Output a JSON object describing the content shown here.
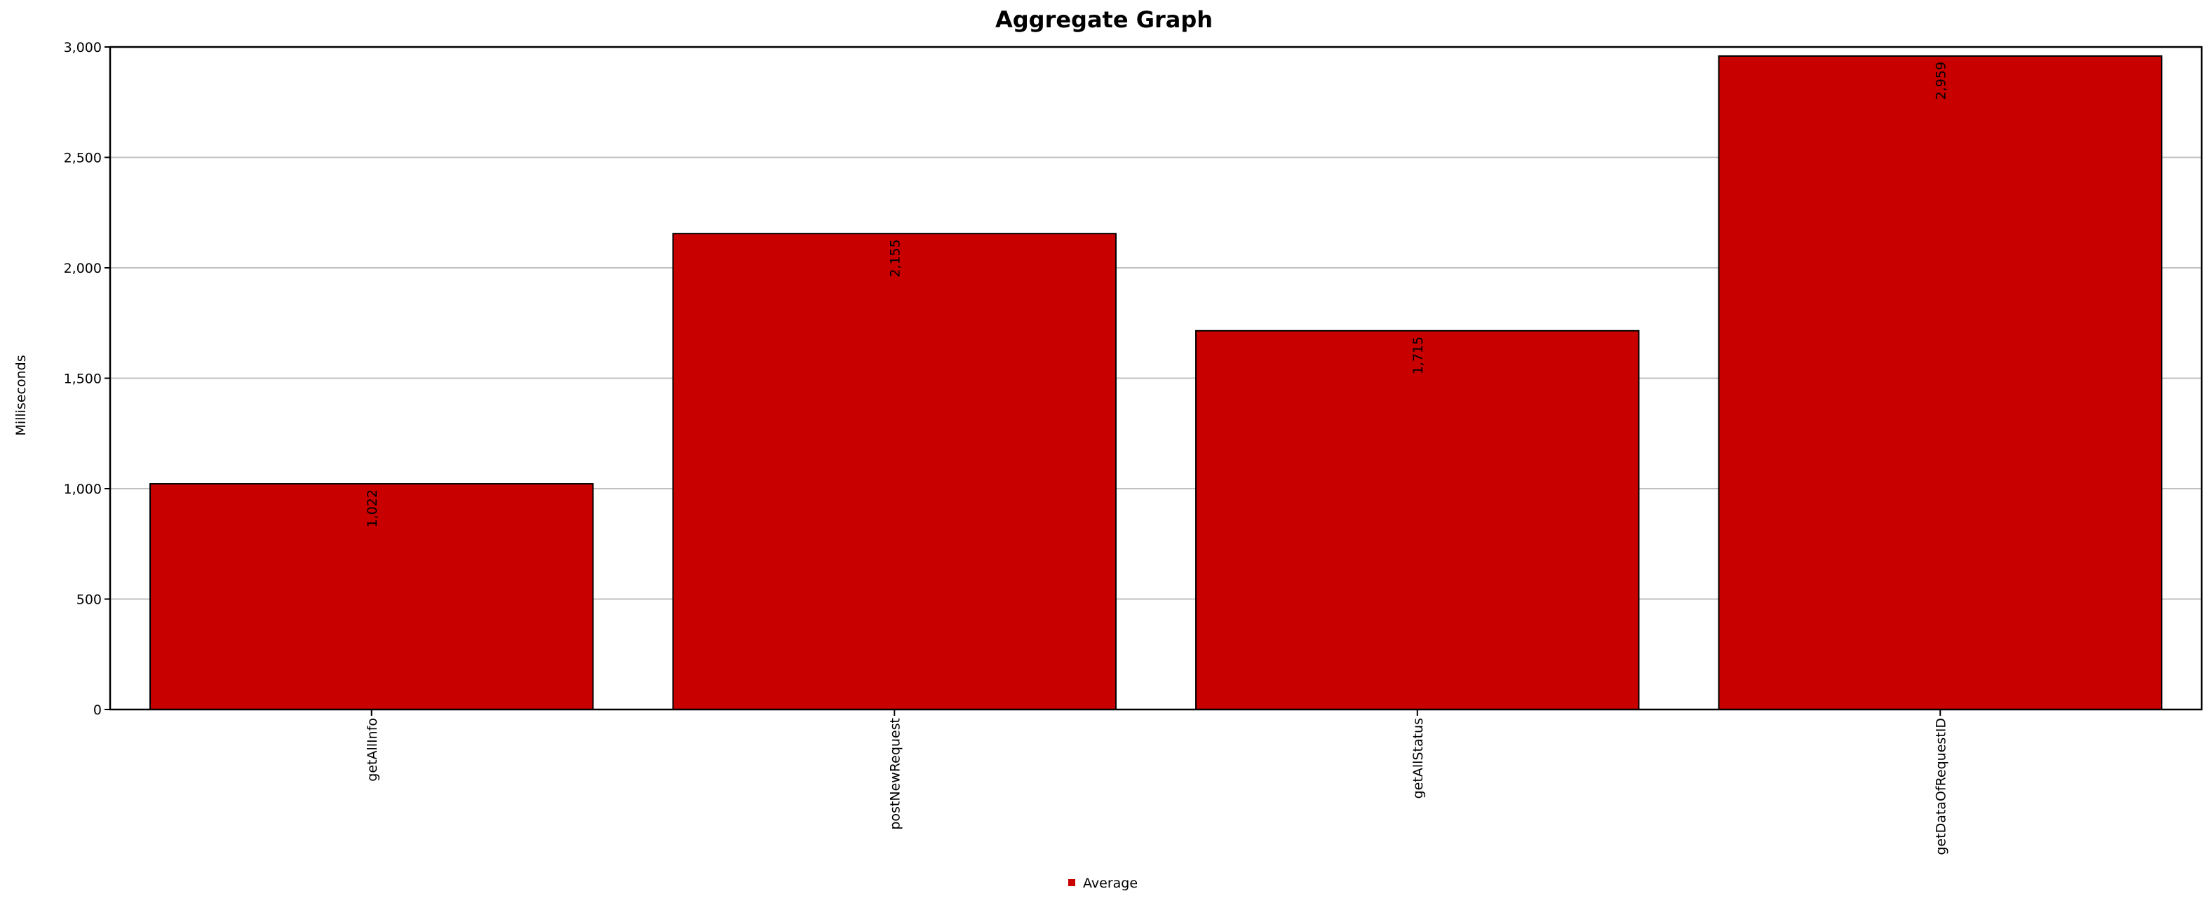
{
  "chart_data": {
    "type": "bar",
    "title": "Aggregate Graph",
    "xlabel": "",
    "ylabel": "Milliseconds",
    "categories": [
      "getAllInfo",
      "postNewRequest",
      "getAllStatus",
      "getDataOfRequestID"
    ],
    "series": [
      {
        "name": "Average",
        "values": [
          1022,
          2155,
          1715,
          2959
        ],
        "labels": [
          "1,022",
          "2,155",
          "1,715",
          "2,959"
        ],
        "color": "#c80000"
      }
    ],
    "ylim": [
      0,
      3000
    ],
    "yticks": [
      0,
      500,
      1000,
      1500,
      2000,
      2500,
      3000
    ],
    "ytick_labels": [
      "0",
      "500",
      "1,000",
      "1,500",
      "2,000",
      "2,500",
      "3,000"
    ],
    "grid": true,
    "legend_position": "bottom-center"
  }
}
